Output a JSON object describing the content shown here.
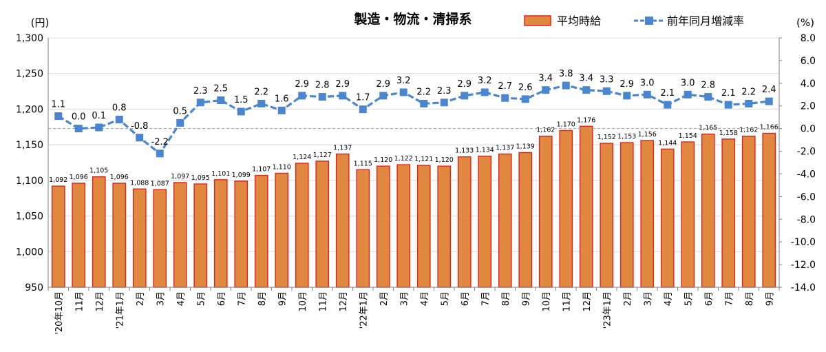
{
  "chart_data": {
    "type": "bar",
    "title": "製造・物流・清掃系",
    "left_unit": "(円)",
    "right_unit": "(%)",
    "categories": [
      "'20年10月",
      "11月",
      "12月",
      "'21年1月",
      "2月",
      "3月",
      "4月",
      "5月",
      "6月",
      "7月",
      "8月",
      "9月",
      "10月",
      "11月",
      "12月",
      "'22年1月",
      "2月",
      "3月",
      "4月",
      "5月",
      "6月",
      "7月",
      "8月",
      "9月",
      "10月",
      "11月",
      "12月",
      "'23年1月",
      "2月",
      "3月",
      "4月",
      "5月",
      "6月",
      "7月",
      "8月",
      "9月"
    ],
    "series": [
      {
        "name": "平均時給",
        "type": "bar",
        "axis": "left",
        "color": "#E0883F",
        "border_color": "#E8201A",
        "values": [
          1092,
          1096,
          1105,
          1096,
          1088,
          1087,
          1097,
          1095,
          1101,
          1099,
          1107,
          1110,
          1124,
          1127,
          1137,
          1115,
          1120,
          1122,
          1121,
          1120,
          1133,
          1134,
          1137,
          1139,
          1162,
          1170,
          1176,
          1152,
          1153,
          1156,
          1144,
          1154,
          1165,
          1158,
          1162,
          1166
        ],
        "labels": [
          "1,092",
          "1,096",
          "1,105",
          "1,096",
          "1,088",
          "1,087",
          "1,097",
          "1,095",
          "1,101",
          "1,099",
          "1,107",
          "1,110",
          "1,124",
          "1,127",
          "1,137",
          "1,115",
          "1,120",
          "1,122",
          "1,121",
          "1,120",
          "1,133",
          "1,134",
          "1,137",
          "1,139",
          "1,162",
          "1,170",
          "1,176",
          "1,152",
          "1,153",
          "1,156",
          "1,144",
          "1,154",
          "1,165",
          "1,158",
          "1,162",
          "1,166"
        ]
      },
      {
        "name": "前年同月増減率",
        "type": "line",
        "axis": "right",
        "color": "#4A86CF",
        "marker": "square",
        "values": [
          1.1,
          0.0,
          0.1,
          0.8,
          -0.8,
          -2.2,
          0.5,
          2.3,
          2.5,
          1.5,
          2.2,
          1.6,
          2.9,
          2.8,
          2.9,
          1.7,
          2.9,
          3.2,
          2.2,
          2.3,
          2.9,
          3.2,
          2.7,
          2.6,
          3.4,
          3.8,
          3.4,
          3.3,
          2.9,
          3.0,
          2.1,
          3.0,
          2.8,
          2.1,
          2.2,
          2.4
        ],
        "labels": [
          "1.1",
          "0.0",
          "0.1",
          "0.8",
          "-0.8",
          "-2.2",
          "0.5",
          "2.3",
          "2.5",
          "1.5",
          "2.2",
          "1.6",
          "2.9",
          "2.8",
          "2.9",
          "1.7",
          "2.9",
          "3.2",
          "2.2",
          "2.3",
          "2.9",
          "3.2",
          "2.7",
          "2.6",
          "3.4",
          "3.8",
          "3.4",
          "3.3",
          "2.9",
          "3.0",
          "2.1",
          "3.0",
          "2.8",
          "2.1",
          "2.2",
          "2.4"
        ]
      }
    ],
    "left_axis": {
      "min": 950,
      "max": 1300,
      "step": 50,
      "tick_labels": [
        "950",
        "1,000",
        "1,050",
        "1,100",
        "1,150",
        "1,200",
        "1,250",
        "1,300"
      ]
    },
    "right_axis": {
      "min": -14,
      "max": 8,
      "step": 2,
      "tick_labels": [
        "-14.0",
        "-12.0",
        "-10.0",
        "-8.0",
        "-6.0",
        "-4.0",
        "-2.0",
        "0.0",
        "2.0",
        "4.0",
        "6.0",
        "8.0"
      ]
    },
    "reference_line": {
      "axis": "right",
      "value": 0,
      "style": "dashed",
      "color": "#A0A0A0"
    },
    "grid": true,
    "legend_position": "top-right"
  }
}
